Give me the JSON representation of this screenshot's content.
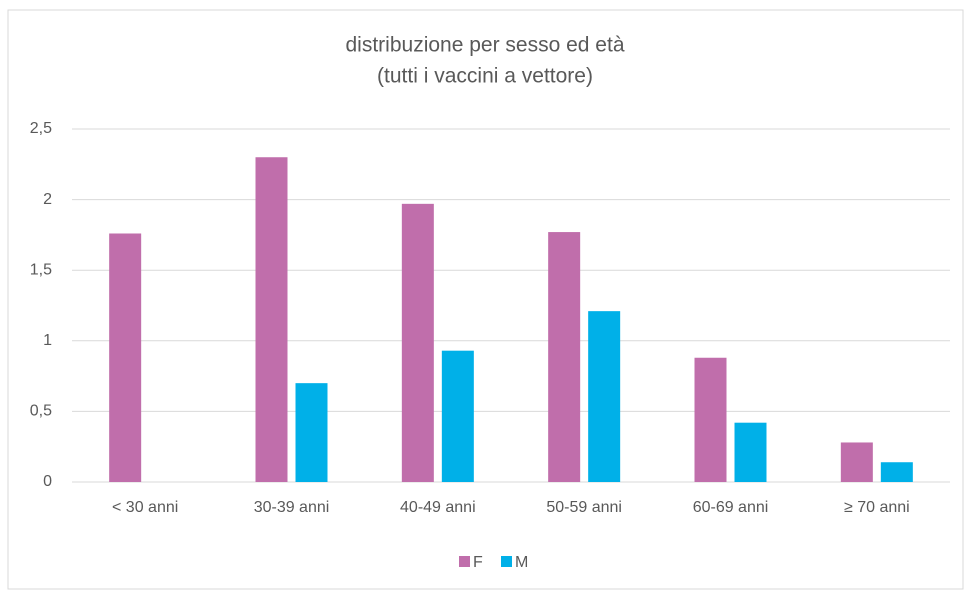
{
  "chart_data": {
    "type": "bar",
    "title": "distribuzione per sesso ed età",
    "subtitle": "(tutti i vaccini a vettore)",
    "categories": [
      "< 30 anni",
      "30-39 anni",
      "40-49 anni",
      "50-59 anni",
      "60-69 anni",
      "≥ 70 anni"
    ],
    "series": [
      {
        "name": "F",
        "color": "#c06eab",
        "values": [
          1.76,
          2.3,
          1.97,
          1.77,
          0.88,
          0.28
        ]
      },
      {
        "name": "M",
        "color": "#00b0e8",
        "values": [
          null,
          0.7,
          0.93,
          1.21,
          0.42,
          0.14
        ]
      }
    ],
    "ylim": [
      0,
      2.5
    ],
    "yticks": [
      0,
      {
        "value": 0.5,
        "label": "0,5"
      },
      1,
      {
        "value": 1.5,
        "label": "1,5"
      },
      2,
      {
        "value": 2.5,
        "label": "2,5"
      }
    ],
    "grid": true,
    "legend": "bottom"
  }
}
